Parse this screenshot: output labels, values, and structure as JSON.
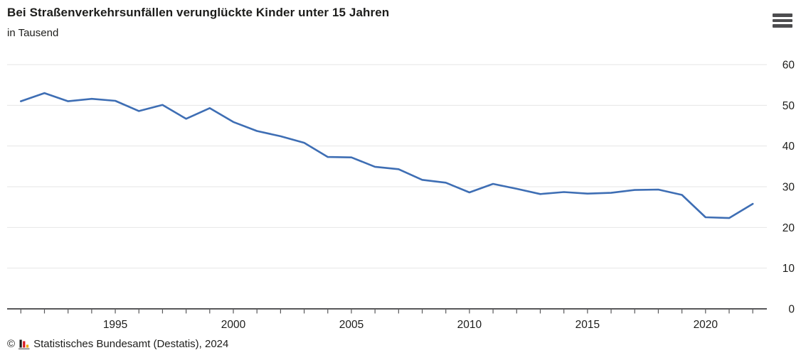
{
  "header": {
    "title": "Bei Straßenverkehrsunfällen verunglückte Kinder unter 15 Jahren",
    "subtitle": "in Tausend"
  },
  "menu": {
    "icon": "hamburger-menu-icon"
  },
  "chart_data": {
    "type": "line",
    "title": "Bei Straßenverkehrsunfällen verunglückte Kinder unter 15 Jahren",
    "ylabel": "in Tausend",
    "xlabel": "",
    "x": [
      1991,
      1992,
      1993,
      1994,
      1995,
      1996,
      1997,
      1998,
      1999,
      2000,
      2001,
      2002,
      2003,
      2004,
      2005,
      2006,
      2007,
      2008,
      2009,
      2010,
      2011,
      2012,
      2013,
      2014,
      2015,
      2016,
      2017,
      2018,
      2019,
      2020,
      2021,
      2022
    ],
    "values": [
      51.0,
      53.0,
      51.0,
      51.6,
      51.1,
      48.6,
      50.1,
      46.7,
      49.3,
      45.9,
      43.7,
      42.4,
      40.8,
      37.3,
      37.2,
      34.9,
      34.3,
      31.7,
      31.0,
      28.6,
      30.7,
      29.5,
      28.2,
      28.7,
      28.3,
      28.5,
      29.2,
      29.3,
      28.0,
      22.5,
      22.3,
      25.8
    ],
    "ylim": [
      0,
      60
    ],
    "y_ticks": [
      0,
      10,
      20,
      30,
      40,
      50,
      60
    ],
    "x_tick_labels": [
      "1995",
      "2000",
      "2005",
      "2010",
      "2015",
      "2020"
    ],
    "x_tick_label_years": [
      1995,
      2000,
      2005,
      2010,
      2015,
      2020
    ],
    "grid": true,
    "legend_position": "none",
    "line_color": "#3e6eb4",
    "grid_color": "#e6e6e6",
    "axis_color": "#58585a",
    "tick_label_color": "#1d1d1b"
  },
  "footer": {
    "copyright": "©",
    "source": "Statistisches Bundesamt (Destatis), 2024"
  },
  "logo_colors": {
    "black_bar": "#1d1d1b",
    "red_bar": "#d71920",
    "gold_bar": "#f0aa00",
    "base": "#9c9c9c"
  }
}
